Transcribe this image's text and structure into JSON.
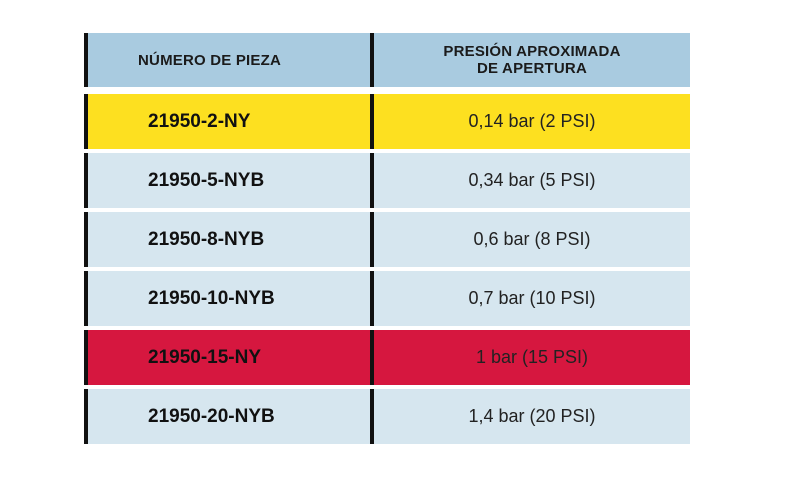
{
  "table": {
    "headers": {
      "part_number": "NÚMERO DE PIEZA",
      "pressure_line1": "PRESIÓN APROXIMADA",
      "pressure_line2": "DE APERTURA"
    },
    "rows": [
      {
        "part": "21950-2-NY",
        "pressure": "0,14 bar (2 PSI)",
        "bg": "#fde020"
      },
      {
        "part": "21950-5-NYB",
        "pressure": "0,34 bar (5 PSI)",
        "bg": "#d6e6ef"
      },
      {
        "part": "21950-8-NYB",
        "pressure": "0,6 bar (8 PSI)",
        "bg": "#d6e6ef"
      },
      {
        "part": "21950-10-NYB",
        "pressure": "0,7 bar (10 PSI)",
        "bg": "#d6e6ef"
      },
      {
        "part": "21950-15-NY",
        "pressure": "1 bar (15 PSI)",
        "bg": "#d6173f"
      },
      {
        "part": "21950-20-NYB",
        "pressure": "1,4 bar (20 PSI)",
        "bg": "#d6e6ef"
      }
    ]
  },
  "colors": {
    "header_bg": "#a9cbe0",
    "divider": "#111111"
  }
}
